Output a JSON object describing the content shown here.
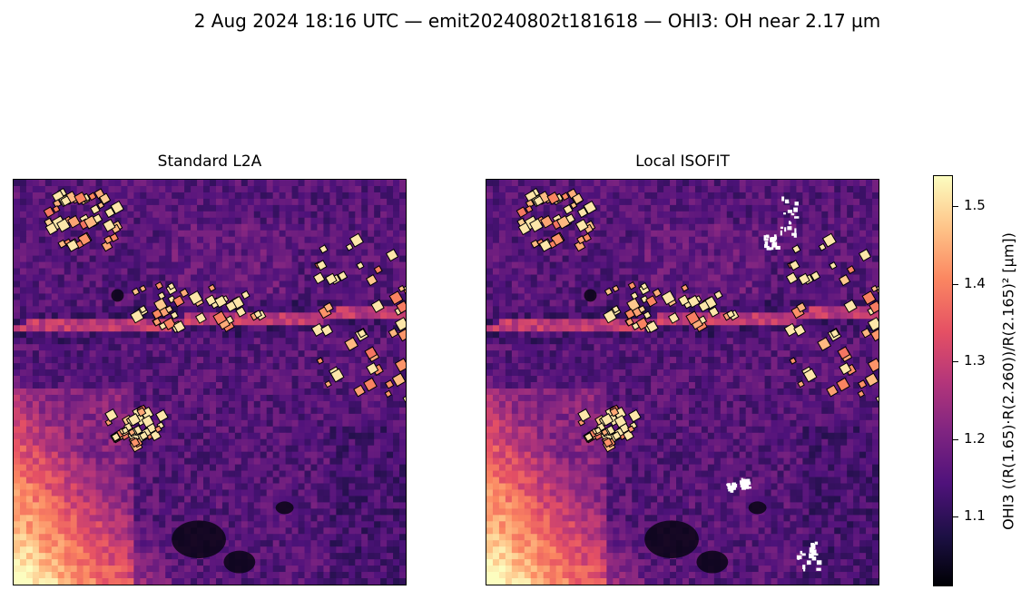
{
  "figure": {
    "suptitle": "2 Aug 2024 18:16 UTC — emit20240802t181618 — OHI3: OH near 2.17 µm"
  },
  "chart_data": [
    {
      "type": "heatmap",
      "title": "Standard L2A",
      "colormap": "magma",
      "axes_ticks": "none",
      "clim": [
        1.01,
        1.54
      ]
    },
    {
      "type": "heatmap",
      "title": "Local ISOFIT",
      "colormap": "magma",
      "axes_ticks": "none",
      "clim": [
        1.01,
        1.54
      ],
      "note_visible": "white masked pixels in upper-right region"
    }
  ],
  "colorbar": {
    "label": "OHI3  ((R(1.65)·R(2.260))/R(2.165)²  [µm])",
    "range": [
      1.01,
      1.54
    ],
    "ticks": [
      {
        "value": 1.1,
        "label": "1.1"
      },
      {
        "value": 1.2,
        "label": "1.2"
      },
      {
        "value": 1.3,
        "label": "1.3"
      },
      {
        "value": 1.4,
        "label": "1.4"
      },
      {
        "value": 1.5,
        "label": "1.5"
      }
    ],
    "colors": [
      "#000004",
      "#4f127b",
      "#b5367a",
      "#fb8761",
      "#fcfdbf"
    ]
  }
}
